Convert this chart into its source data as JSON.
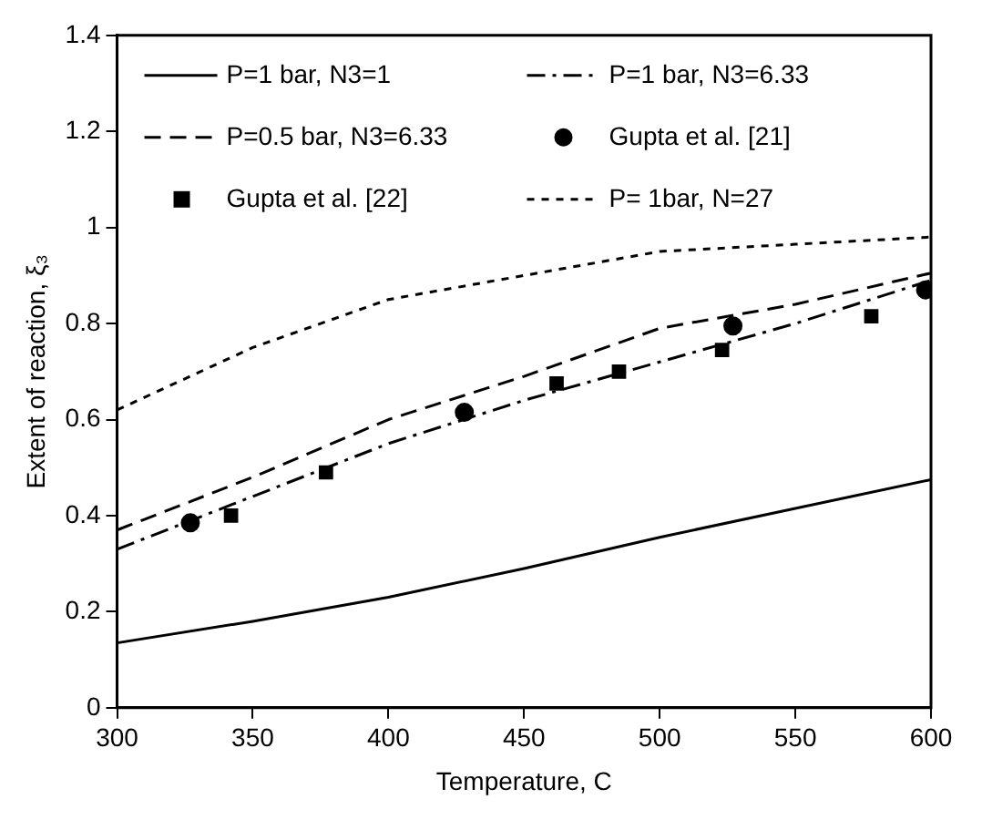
{
  "chart_data": {
    "type": "line",
    "xlabel": "Temperature, C",
    "ylabel": "Extent of reaction, ξ₃",
    "xlim": [
      300,
      600
    ],
    "ylim": [
      0,
      1.4
    ],
    "xticks": [
      300,
      350,
      400,
      450,
      500,
      550,
      600
    ],
    "yticks": [
      0,
      0.2,
      0.4,
      0.6,
      0.8,
      1,
      1.2,
      1.4
    ],
    "grid": false,
    "legend": "top",
    "series": [
      {
        "name": "P=1 bar, N3=1",
        "type": "line",
        "line_style": "solid",
        "marker": "none",
        "color": "#000000",
        "x": [
          300,
          350,
          400,
          450,
          500,
          550,
          600
        ],
        "values": [
          0.135,
          0.18,
          0.23,
          0.29,
          0.355,
          0.415,
          0.475
        ]
      },
      {
        "name": "P=1 bar, N3=6.33",
        "type": "line",
        "line_style": "dashdot",
        "marker": "none",
        "color": "#000000",
        "x": [
          300,
          350,
          400,
          450,
          500,
          550,
          600
        ],
        "values": [
          0.33,
          0.44,
          0.55,
          0.64,
          0.72,
          0.8,
          0.89
        ]
      },
      {
        "name": "P=0.5 bar, N3=6.33",
        "type": "line",
        "line_style": "dashed",
        "marker": "none",
        "color": "#000000",
        "x": [
          300,
          350,
          400,
          450,
          500,
          550,
          600
        ],
        "values": [
          0.37,
          0.48,
          0.6,
          0.69,
          0.79,
          0.84,
          0.905
        ]
      },
      {
        "name": "Gupta et al. [21]",
        "type": "scatter",
        "marker": "circle",
        "color": "#000000",
        "x": [
          327,
          428,
          527,
          598
        ],
        "values": [
          0.385,
          0.615,
          0.795,
          0.87
        ]
      },
      {
        "name": "Gupta et al. [22]",
        "type": "scatter",
        "marker": "square",
        "color": "#000000",
        "x": [
          342,
          377,
          462,
          485,
          523,
          578
        ],
        "values": [
          0.4,
          0.49,
          0.675,
          0.7,
          0.745,
          0.815
        ]
      },
      {
        "name": "P= 1bar, N=27",
        "type": "line",
        "line_style": "dotted",
        "marker": "none",
        "color": "#000000",
        "x": [
          300,
          350,
          400,
          450,
          500,
          550,
          600
        ],
        "values": [
          0.62,
          0.75,
          0.85,
          0.9,
          0.95,
          0.965,
          0.98
        ]
      }
    ]
  }
}
